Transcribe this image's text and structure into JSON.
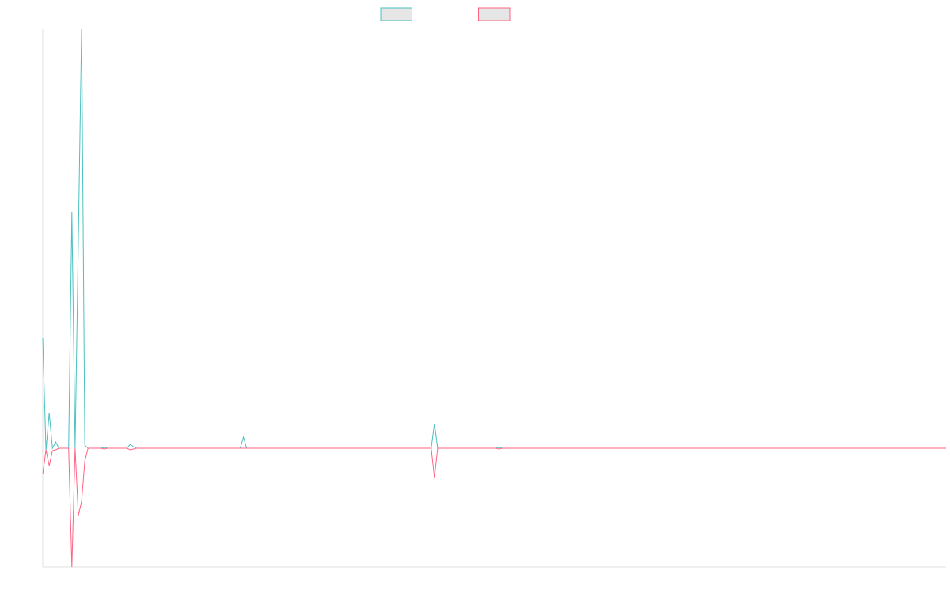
{
  "chart_data": {
    "type": "line",
    "legend": "top",
    "ylim": [
      -15,
      53
    ],
    "series": [
      {
        "color": "#4bc0c0",
        "values": [
          13.9,
          -0.3,
          4.5,
          0,
          0.8,
          0,
          0,
          0,
          0,
          29.8,
          0,
          26.5,
          53,
          0.4,
          0,
          0,
          0,
          0,
          0,
          0.1,
          0,
          0,
          0,
          0,
          0,
          0,
          0,
          0.5,
          0.2,
          0,
          0,
          0,
          0,
          0,
          0,
          0,
          0,
          0,
          0,
          0,
          0,
          0,
          0,
          0,
          0,
          0,
          0,
          0,
          0,
          0,
          0,
          0,
          0,
          0,
          0,
          0,
          0,
          0,
          0,
          0,
          0,
          0,
          1.4,
          0,
          0,
          0,
          0,
          0,
          0,
          0,
          0,
          0,
          0,
          0,
          0,
          0,
          0,
          0,
          0,
          0,
          0,
          0,
          0,
          0,
          0,
          0,
          0,
          0,
          0,
          0,
          0,
          0,
          0,
          0,
          0,
          0,
          0,
          0,
          0,
          0,
          0,
          0,
          0,
          0,
          0,
          0,
          0,
          0,
          0,
          0,
          0,
          0,
          0,
          0,
          0,
          0,
          0,
          0,
          0,
          0,
          0,
          3.1,
          0,
          0,
          0,
          0,
          0,
          0,
          0,
          0,
          0,
          0,
          0,
          0,
          0,
          0,
          0,
          0,
          0,
          0,
          0,
          0.1,
          0,
          0,
          0,
          0,
          0,
          0,
          0,
          0,
          0,
          0,
          0,
          0,
          0,
          0,
          0,
          0,
          0,
          0,
          0,
          0,
          0,
          0,
          0,
          0,
          0,
          0,
          0,
          0,
          0,
          0,
          0,
          0,
          0,
          0,
          0,
          0,
          0,
          0,
          0,
          0,
          0,
          0,
          0,
          0,
          0,
          0,
          0,
          0,
          0,
          0,
          0,
          0,
          0,
          0,
          0,
          0,
          0,
          0,
          0,
          0,
          0,
          0,
          0,
          0,
          0,
          0,
          0,
          0,
          0,
          0,
          0,
          0,
          0,
          0,
          0,
          0,
          0,
          0,
          0,
          0,
          0,
          0,
          0,
          0,
          0,
          0,
          0,
          0,
          0,
          0,
          0,
          0,
          0,
          0,
          0,
          0,
          0,
          0,
          0,
          0,
          0,
          0,
          0,
          0,
          0,
          0,
          0,
          0,
          0,
          0,
          0,
          0,
          0,
          0,
          0,
          0,
          0,
          0,
          0,
          0,
          0,
          0,
          0,
          0,
          0,
          0,
          0,
          0,
          0,
          0,
          0,
          0,
          0,
          0,
          0,
          0,
          0,
          0
        ]
      },
      {
        "color": "#ff6384",
        "values": [
          -3.3,
          -0.2,
          -2.2,
          -0.3,
          -0.2,
          0,
          0,
          0,
          0,
          -15,
          0,
          -8.5,
          -6.7,
          -1.6,
          0,
          0,
          0,
          0,
          0,
          -0.1,
          0,
          0,
          0,
          0,
          0,
          0,
          0,
          -0.2,
          -0.1,
          0,
          0,
          0,
          0,
          0,
          0,
          0,
          0,
          0,
          0,
          0,
          0,
          0,
          0,
          0,
          0,
          0,
          0,
          0,
          0,
          0,
          0,
          0,
          0,
          0,
          0,
          0,
          0,
          0,
          0,
          0,
          0,
          0,
          0,
          0,
          0,
          0,
          0,
          0,
          0,
          0,
          0,
          0,
          0,
          0,
          0,
          0,
          0,
          0,
          0,
          0,
          0,
          0,
          0,
          0,
          0,
          0,
          0,
          0,
          0,
          0,
          0,
          0,
          0,
          0,
          0,
          0,
          0,
          0,
          0,
          0,
          0,
          0,
          0,
          0,
          0,
          0,
          0,
          0,
          0,
          0,
          0,
          0,
          0,
          0,
          0,
          0,
          0,
          0,
          0,
          0,
          0,
          -3.7,
          0,
          0,
          0,
          0,
          0,
          0,
          0,
          0,
          0,
          0,
          0,
          0,
          0,
          0,
          0,
          0,
          0,
          0,
          0,
          -0.1,
          0,
          0,
          0,
          0,
          0,
          0,
          0,
          0,
          0,
          0,
          0,
          0,
          0,
          0,
          0,
          0,
          0,
          0,
          0,
          0,
          0,
          0,
          0,
          0,
          0,
          0,
          0,
          0,
          0,
          0,
          0,
          0,
          0,
          0,
          0,
          0,
          0,
          0,
          0,
          0,
          0,
          0,
          0,
          0,
          0,
          0,
          0,
          0,
          0,
          0,
          0,
          0,
          0,
          0,
          0,
          0,
          0,
          0,
          0,
          0,
          0,
          0,
          0,
          0,
          0,
          0,
          0,
          0,
          0,
          0,
          0,
          0,
          0,
          0,
          0,
          0,
          0,
          0,
          0,
          0,
          0,
          0,
          0,
          0,
          0,
          0,
          0,
          0,
          0,
          0,
          0,
          0,
          0,
          0,
          0,
          0,
          0,
          0,
          0,
          0,
          0,
          0,
          0,
          0,
          0,
          0,
          0,
          0,
          0,
          0,
          0,
          0,
          0,
          0,
          0,
          0,
          0,
          0,
          0,
          0,
          0,
          0,
          0,
          0,
          0,
          0,
          0,
          0,
          0,
          0,
          0,
          0,
          0,
          0,
          0,
          0,
          0,
          0
        ]
      }
    ]
  }
}
